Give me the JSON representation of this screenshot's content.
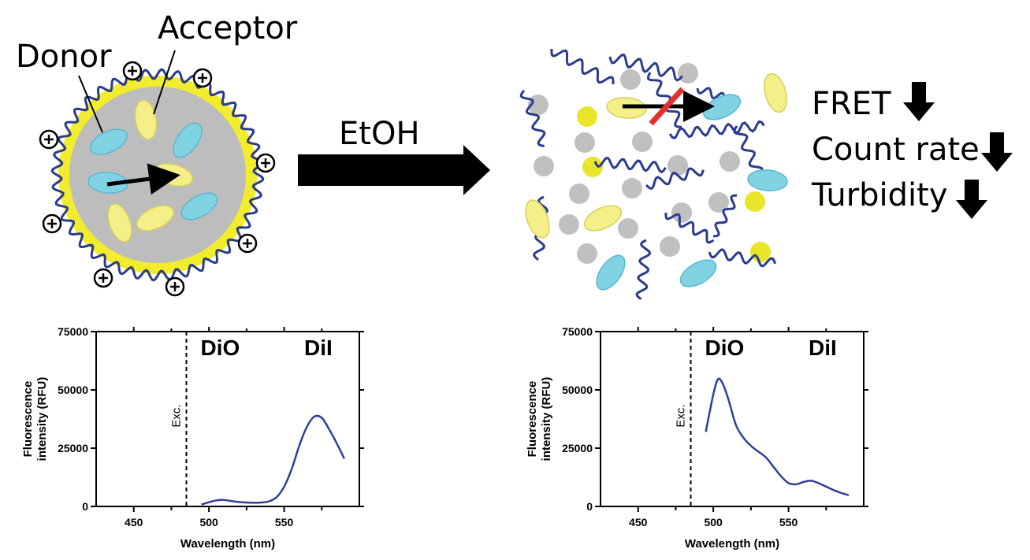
{
  "labels": {
    "donor": "Donor",
    "acceptor": "Acceptor",
    "solvent": "EtOH",
    "fret": "FRET",
    "count_rate": "Count rate",
    "turbidity": "Turbidity",
    "charge": "+"
  },
  "colors": {
    "core": "#bdbdbd",
    "shell": "#f2ec2e",
    "polymer": "#2b3c8f",
    "donor": "#7fd3e3",
    "acceptor": "#f4ef88",
    "dye_dot": "#e9e52a",
    "grey_dot": "#c0c0c0",
    "blocked": "#e3302b",
    "curve": "#2f3f9a"
  },
  "chart_data": [
    {
      "type": "line",
      "title": "",
      "xlabel": "Wavelength (nm)",
      "ylabel": "Fluorescence intensity (RFU)",
      "xlim": [
        425,
        600
      ],
      "ylim": [
        0,
        75000
      ],
      "xticks": [
        "450",
        "500",
        "550"
      ],
      "yticks": [
        "0",
        "25000",
        "50000",
        "75000"
      ],
      "annotations": [
        "DiO",
        "DiI",
        "Exc."
      ],
      "excitation_nm": 485,
      "series": [
        {
          "x": [
            495,
            500,
            505,
            510,
            515,
            520,
            525,
            530,
            535,
            540,
            545,
            550,
            555,
            560,
            565,
            570,
            575,
            580,
            585,
            590
          ],
          "y": [
            800,
            1800,
            2600,
            2800,
            2300,
            1900,
            1700,
            1600,
            1700,
            2200,
            4000,
            8500,
            16000,
            26000,
            34000,
            38500,
            38000,
            33000,
            27000,
            20500
          ]
        }
      ]
    },
    {
      "type": "line",
      "title": "",
      "xlabel": "Wavelength (nm)",
      "ylabel": "Fluorescence intensity (RFU)",
      "xlim": [
        425,
        600
      ],
      "ylim": [
        0,
        75000
      ],
      "xticks": [
        "450",
        "500",
        "550"
      ],
      "yticks": [
        "0",
        "25000",
        "50000",
        "75000"
      ],
      "annotations": [
        "DiO",
        "DiI",
        "Exc."
      ],
      "excitation_nm": 485,
      "series": [
        {
          "x": [
            495,
            500,
            503,
            506,
            510,
            515,
            520,
            525,
            530,
            535,
            540,
            545,
            550,
            555,
            560,
            565,
            570,
            575,
            580,
            585,
            590
          ],
          "y": [
            32000,
            48000,
            54500,
            53000,
            46000,
            35000,
            29500,
            26000,
            23500,
            21000,
            17000,
            13000,
            10000,
            9500,
            10500,
            11000,
            10000,
            8500,
            7000,
            5800,
            4800
          ]
        }
      ]
    }
  ]
}
